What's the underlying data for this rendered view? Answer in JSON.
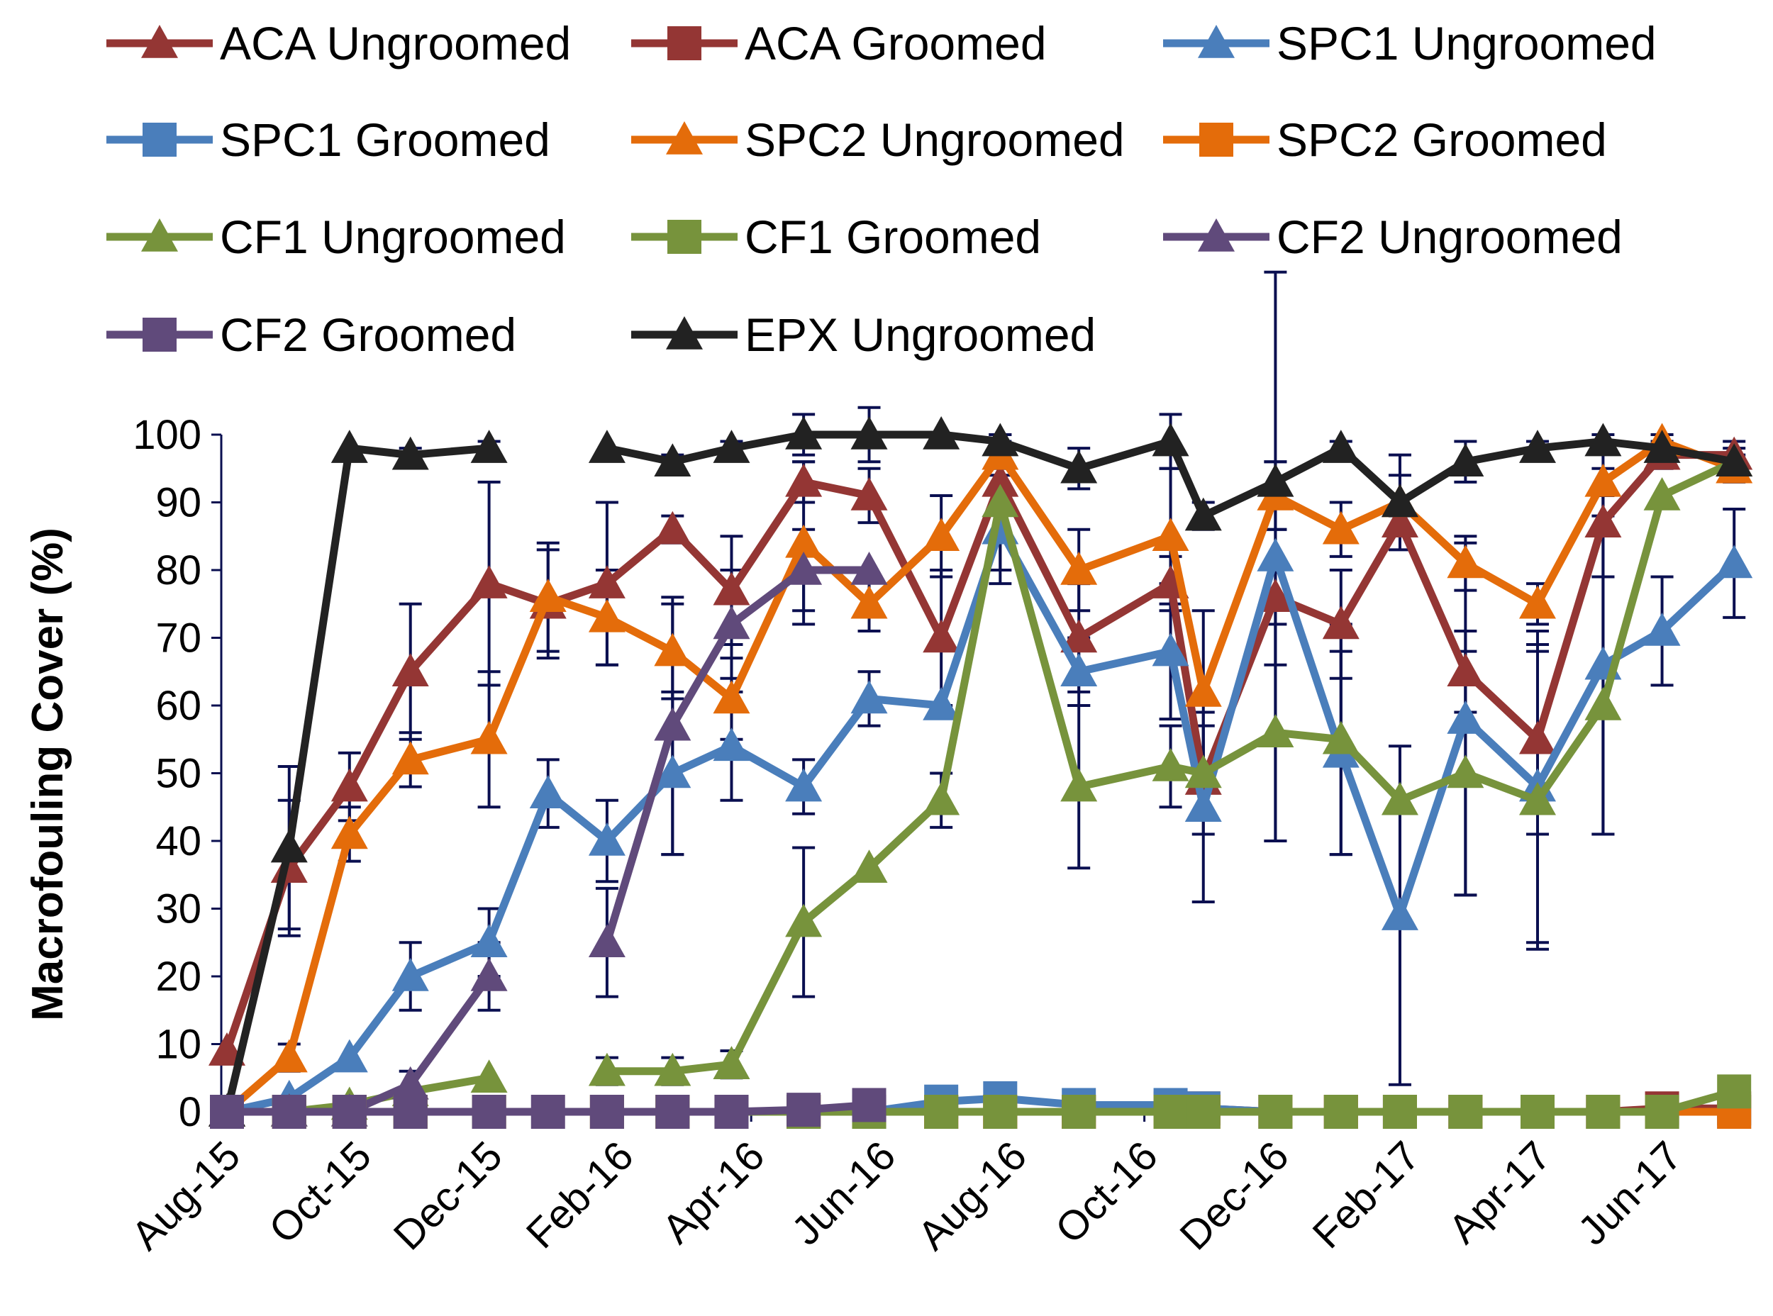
{
  "chart_data": {
    "type": "line",
    "title": "",
    "xlabel": "",
    "ylabel": "Macrofouling Cover (%)",
    "ylim": [
      0,
      100
    ],
    "yticks": [
      "0",
      "10",
      "20",
      "30",
      "40",
      "50",
      "60",
      "70",
      "80",
      "90",
      "100"
    ],
    "xticks": [
      "Aug-15",
      "Oct-15",
      "Dec-15",
      "Feb-16",
      "Apr-16",
      "Jun-16",
      "Aug-16",
      "Oct-16",
      "Dec-16",
      "Feb-17",
      "Apr-17",
      "Jun-17"
    ],
    "x_unit": "months since Aug-15",
    "x": [
      0,
      0.95,
      1.87,
      2.8,
      4.0,
      4.9,
      5.8,
      6.8,
      7.7,
      8.8,
      9.8,
      10.9,
      11.8,
      13.0,
      14.4,
      14.9,
      16.0,
      17.0,
      17.9,
      18.9,
      20.0,
      21.0,
      21.9,
      23.0
    ],
    "legend_position": "top",
    "error_color": "#0a0f50",
    "series": [
      {
        "name": "ACA Ungroomed",
        "color": "#943634",
        "marker": "triangle",
        "values": [
          9,
          36,
          48,
          65,
          78,
          75,
          78,
          86,
          77,
          93,
          91,
          70,
          93,
          70,
          78,
          49,
          76,
          72,
          87,
          65,
          55,
          87,
          97,
          97
        ],
        "err": [
          null,
          10,
          5,
          10,
          15,
          8,
          12,
          2,
          8,
          3,
          4,
          10,
          3,
          8,
          4,
          8,
          10,
          8,
          1,
          6,
          14,
          8,
          2,
          2
        ]
      },
      {
        "name": "ACA Groomed",
        "color": "#943634",
        "marker": "square",
        "values": [
          0,
          0,
          0,
          0,
          0,
          null,
          0,
          0,
          0,
          0,
          0,
          0,
          0,
          0,
          0.5,
          0.5,
          0,
          0,
          0,
          0,
          0,
          0,
          0.5,
          0.5
        ]
      },
      {
        "name": "SPC1 Ungroomed",
        "color": "#4a7ebb",
        "marker": "triangle",
        "values": [
          0,
          2,
          8,
          20,
          25,
          47,
          40,
          50,
          54,
          48,
          61,
          60,
          86,
          65,
          68,
          45,
          82,
          53,
          29,
          58,
          48,
          66,
          71,
          81
        ],
        "err": [
          null,
          null,
          null,
          5,
          5,
          5,
          6,
          12,
          8,
          4,
          4,
          null,
          8,
          5,
          10,
          14,
          42,
          15,
          25,
          26,
          23,
          25,
          8,
          8
        ]
      },
      {
        "name": "SPC1 Groomed",
        "color": "#4a7ebb",
        "marker": "square",
        "values": [
          0,
          0,
          0,
          0,
          0,
          null,
          0,
          0,
          0,
          0,
          0,
          1.5,
          2,
          1,
          1,
          0.5,
          0,
          0,
          0,
          0,
          0,
          0,
          0,
          0
        ]
      },
      {
        "name": "SPC2 Ungroomed",
        "color": "#e46c0a",
        "marker": "triangle",
        "values": [
          0,
          8,
          41,
          52,
          55,
          76,
          73,
          68,
          61,
          84,
          75,
          85,
          97,
          80,
          85,
          62,
          91,
          86,
          90,
          81,
          75,
          93,
          99,
          95
        ],
        "err": [
          null,
          2,
          4,
          4,
          10,
          8,
          7,
          7,
          6,
          12,
          4,
          6,
          2,
          6,
          10,
          12,
          5,
          4,
          4,
          4,
          3,
          5,
          1,
          2
        ]
      },
      {
        "name": "SPC2 Groomed",
        "color": "#e46c0a",
        "marker": "square",
        "values": [
          0,
          0,
          0,
          0,
          0,
          null,
          0,
          0,
          0,
          0,
          0,
          0,
          0,
          0,
          0,
          0,
          0,
          0,
          0,
          0,
          0,
          0,
          0,
          0
        ]
      },
      {
        "name": "CF1 Ungroomed",
        "color": "#77933c",
        "marker": "triangle",
        "values": [
          0,
          0,
          1,
          3,
          5,
          null,
          6,
          6,
          7,
          28,
          36,
          46,
          90,
          48,
          51,
          50,
          56,
          55,
          46,
          50,
          46,
          60,
          91,
          96
        ],
        "err": [
          null,
          null,
          null,
          null,
          null,
          null,
          2,
          2,
          2,
          11,
          null,
          4,
          10,
          12,
          6,
          null,
          16,
          17,
          null,
          18,
          22,
          19,
          null,
          null
        ]
      },
      {
        "name": "CF1 Groomed",
        "color": "#77933c",
        "marker": "square",
        "values": [
          0,
          0,
          0,
          0,
          0,
          null,
          0,
          0,
          0,
          0,
          0,
          0,
          0,
          0,
          0,
          0,
          0,
          0,
          0,
          0,
          0,
          0,
          0,
          3
        ]
      },
      {
        "name": "CF2 Ungroomed",
        "color": "#604a7b",
        "marker": "triangle",
        "values": [
          0,
          0,
          0,
          4,
          20,
          null,
          25,
          57,
          72,
          80,
          80,
          null,
          null,
          null,
          null,
          null,
          null,
          null,
          null,
          null,
          null,
          null,
          null,
          null
        ],
        "err": [
          null,
          null,
          null,
          2,
          5,
          null,
          8,
          19,
          8,
          6,
          null,
          null,
          null,
          null,
          null,
          null,
          null,
          null,
          null,
          null,
          null,
          null,
          null,
          null
        ]
      },
      {
        "name": "CF2 Groomed",
        "color": "#604a7b",
        "marker": "square",
        "values": [
          0,
          0,
          0,
          0,
          0,
          0,
          0,
          0,
          0,
          0.3,
          1,
          null,
          null,
          null,
          null,
          null,
          null,
          null,
          null,
          null,
          null,
          null,
          null,
          null
        ]
      },
      {
        "name": "EPX Ungroomed",
        "color": "#222222",
        "marker": "triangle",
        "values": [
          0,
          39,
          98,
          97,
          98,
          null,
          98,
          96,
          98,
          100,
          100,
          100,
          99,
          95,
          99,
          88,
          93,
          98,
          90,
          96,
          98,
          99,
          98,
          96
        ],
        "err": [
          null,
          12,
          null,
          1,
          1,
          null,
          null,
          1,
          1,
          3,
          4,
          null,
          1,
          3,
          4,
          2,
          3,
          1,
          7,
          3,
          1,
          1,
          2,
          2
        ]
      }
    ]
  }
}
